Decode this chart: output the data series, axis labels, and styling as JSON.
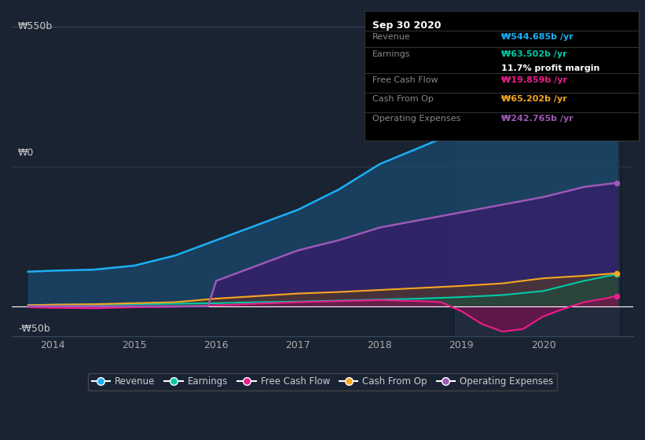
{
  "bg_color": "#1a2332",
  "plot_bg_color": "#1a2332",
  "ylabel_550": "₩550b",
  "ylabel_0": "₩0",
  "ylabel_neg50": "-₩50b",
  "x_labels": [
    "2014",
    "2015",
    "2016",
    "2017",
    "2018",
    "2019",
    "2020"
  ],
  "revenue": {
    "label": "Revenue",
    "color": "#1ab0f5",
    "fill_color": "#1a4a70"
  },
  "earnings": {
    "label": "Earnings",
    "color": "#00c9a7",
    "fill_color": "#006040"
  },
  "free_cash_flow": {
    "label": "Free Cash Flow",
    "color": "#e91e8c",
    "fill_color": "#8a0a50"
  },
  "cash_from_op": {
    "label": "Cash From Op",
    "color": "#f5a623",
    "fill_color": "#604010"
  },
  "operating_expenses": {
    "label": "Operating Expenses",
    "color": "#9b59b6",
    "fill_color": "#3a1a6a"
  },
  "tooltip": {
    "date": "Sep 30 2020",
    "revenue_label": "Revenue",
    "revenue_value": "₩544.685b",
    "revenue_color": "#1ab0f5",
    "earnings_label": "Earnings",
    "earnings_value": "₩63.502b",
    "earnings_color": "#00c9a7",
    "profit_margin": "11.7% profit margin",
    "fcf_label": "Free Cash Flow",
    "fcf_value": "₩19.859b",
    "fcf_color": "#e91e8c",
    "cop_label": "Cash From Op",
    "cop_value": "₩65.202b",
    "cop_color": "#f5a623",
    "opex_label": "Operating Expenses",
    "opex_value": "₩242.765b",
    "opex_color": "#9b59b6"
  }
}
